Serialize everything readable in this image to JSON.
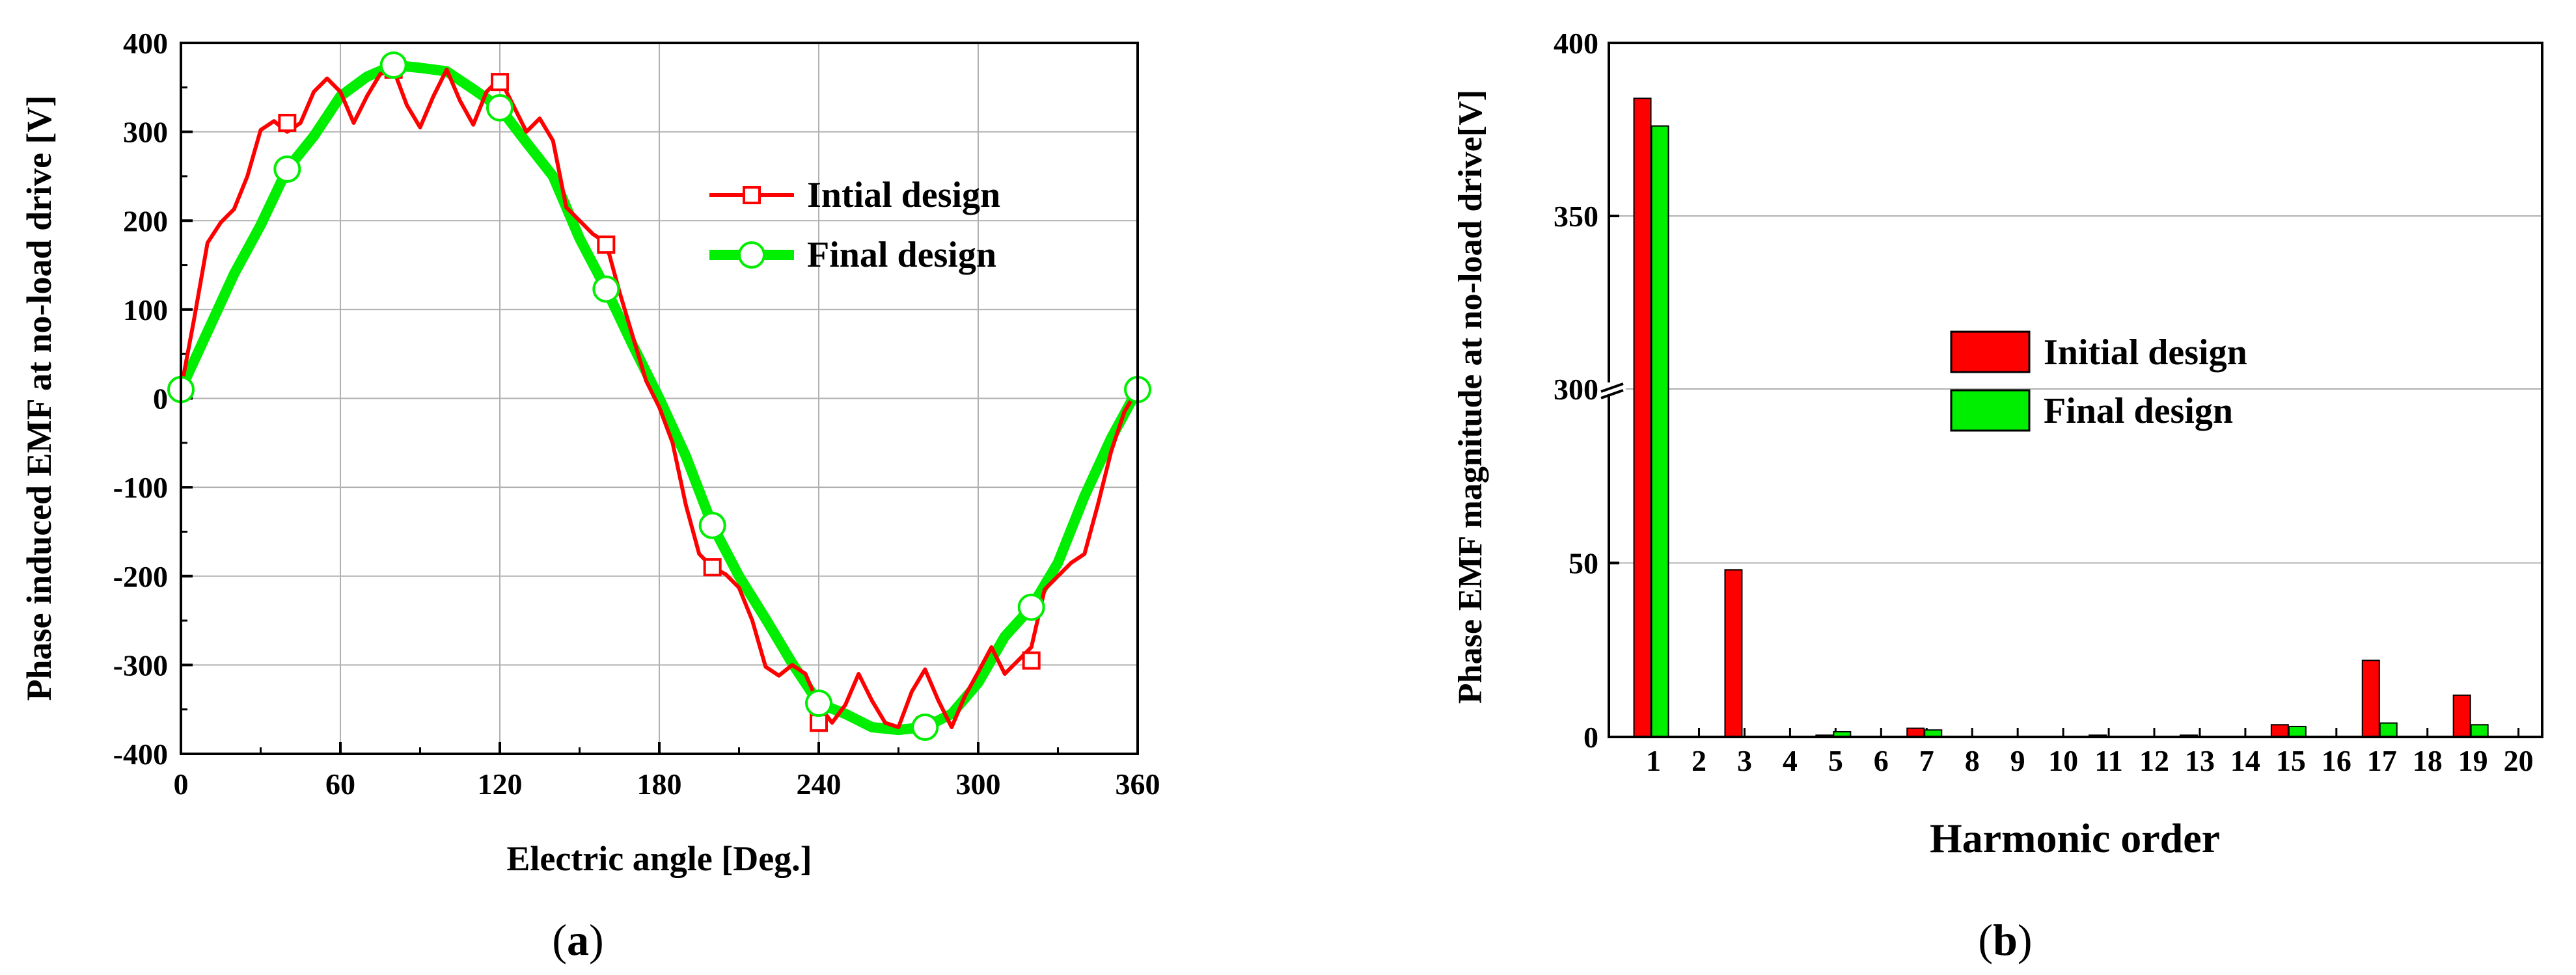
{
  "colors": {
    "initial": "#ff0000",
    "final": "#00ee00",
    "grid": "#b0b0b0",
    "axis": "#000000"
  },
  "chart_data": [
    {
      "type": "line",
      "panel": "a",
      "caption": {
        "open": "(",
        "letter": "a",
        "close": ")"
      },
      "title": "",
      "xlabel": "Electric angle [Deg.]",
      "ylabel": "Phase induced EMF at no-load drive [V]",
      "xlim": [
        0,
        360
      ],
      "ylim": [
        -400,
        400
      ],
      "xticks": [
        "0",
        "60",
        "120",
        "180",
        "240",
        "300",
        "360"
      ],
      "yticks": [
        "-400",
        "-300",
        "-200",
        "-100",
        "0",
        "100",
        "200",
        "300",
        "400"
      ],
      "grid": true,
      "legend_position": "upper-right",
      "series": [
        {
          "name": "Intial design",
          "marker": "square",
          "x": [
            0,
            5,
            10,
            15,
            20,
            25,
            30,
            35,
            40,
            45,
            50,
            55,
            60,
            65,
            70,
            75,
            80,
            85,
            90,
            95,
            100,
            105,
            110,
            115,
            120,
            125,
            130,
            135,
            140,
            145,
            150,
            155,
            160,
            165,
            170,
            175,
            180,
            185,
            190,
            195,
            200,
            205,
            210,
            215,
            220,
            225,
            230,
            235,
            240,
            245,
            250,
            255,
            260,
            265,
            270,
            275,
            280,
            285,
            290,
            295,
            300,
            305,
            310,
            315,
            320,
            325,
            330,
            335,
            340,
            345,
            350,
            355,
            360
          ],
          "y": [
            10,
            90,
            175,
            198,
            213,
            250,
            302,
            312,
            300,
            310,
            345,
            360,
            345,
            310,
            340,
            365,
            370,
            330,
            305,
            340,
            370,
            335,
            308,
            345,
            360,
            330,
            300,
            315,
            290,
            215,
            200,
            185,
            175,
            120,
            70,
            20,
            -10,
            -50,
            -120,
            -175,
            -190,
            -198,
            -213,
            -250,
            -302,
            -312,
            -300,
            -310,
            -345,
            -365,
            -345,
            -310,
            -340,
            -365,
            -370,
            -330,
            -305,
            -340,
            -370,
            -335,
            -308,
            -280,
            -310,
            -295,
            -280,
            -215,
            -200,
            -185,
            -175,
            -120,
            -60,
            -15,
            10
          ],
          "marker_x": [
            0,
            40,
            80,
            120,
            160,
            200,
            240,
            280,
            320,
            360
          ],
          "marker_y": [
            10,
            310,
            370,
            356,
            173,
            -190,
            -365,
            -368,
            -295,
            10
          ]
        },
        {
          "name": "Final design",
          "marker": "circle",
          "x": [
            0,
            10,
            20,
            30,
            40,
            50,
            60,
            70,
            80,
            90,
            100,
            110,
            120,
            130,
            140,
            150,
            160,
            170,
            180,
            190,
            200,
            210,
            220,
            230,
            240,
            250,
            260,
            270,
            280,
            290,
            300,
            310,
            320,
            330,
            340,
            350,
            360
          ],
          "y": [
            10,
            75,
            140,
            195,
            258,
            295,
            340,
            362,
            375,
            372,
            368,
            348,
            327,
            288,
            250,
            180,
            123,
            60,
            0,
            -65,
            -143,
            -200,
            -248,
            -298,
            -343,
            -355,
            -370,
            -373,
            -370,
            -355,
            -320,
            -268,
            -235,
            -185,
            -110,
            -45,
            10
          ],
          "marker_x": [
            0,
            40,
            80,
            120,
            160,
            200,
            240,
            280,
            320,
            360
          ],
          "marker_y": [
            10,
            258,
            375,
            327,
            123,
            -143,
            -343,
            -370,
            -235,
            10
          ]
        }
      ]
    },
    {
      "type": "bar",
      "panel": "b",
      "caption": {
        "open": "(",
        "letter": "b",
        "close": ")"
      },
      "title": "",
      "xlabel": "Harmonic order",
      "ylabel": "Phase EMF magnitude at no-load drive[V]",
      "categories": [
        "1",
        "2",
        "3",
        "4",
        "5",
        "6",
        "7",
        "8",
        "9",
        "10",
        "11",
        "12",
        "13",
        "14",
        "15",
        "16",
        "17",
        "18",
        "19",
        "20"
      ],
      "y_axis_break": [
        100,
        300
      ],
      "ylim": [
        0,
        400
      ],
      "yticks": [
        "0",
        "50",
        "300",
        "350",
        "400"
      ],
      "grid": true,
      "legend_position": "center",
      "series": [
        {
          "name": "Initial design",
          "values": [
            384,
            0,
            48,
            0,
            0.5,
            0,
            2.5,
            0,
            0,
            0,
            0.5,
            0,
            0.5,
            0,
            3.5,
            0,
            22,
            0,
            12,
            0
          ]
        },
        {
          "name": "Final design",
          "values": [
            376,
            0,
            0,
            0,
            1.5,
            0,
            2,
            0,
            0,
            0,
            0,
            0,
            0,
            0,
            3,
            0,
            4,
            0,
            3.5,
            0
          ]
        }
      ]
    }
  ]
}
